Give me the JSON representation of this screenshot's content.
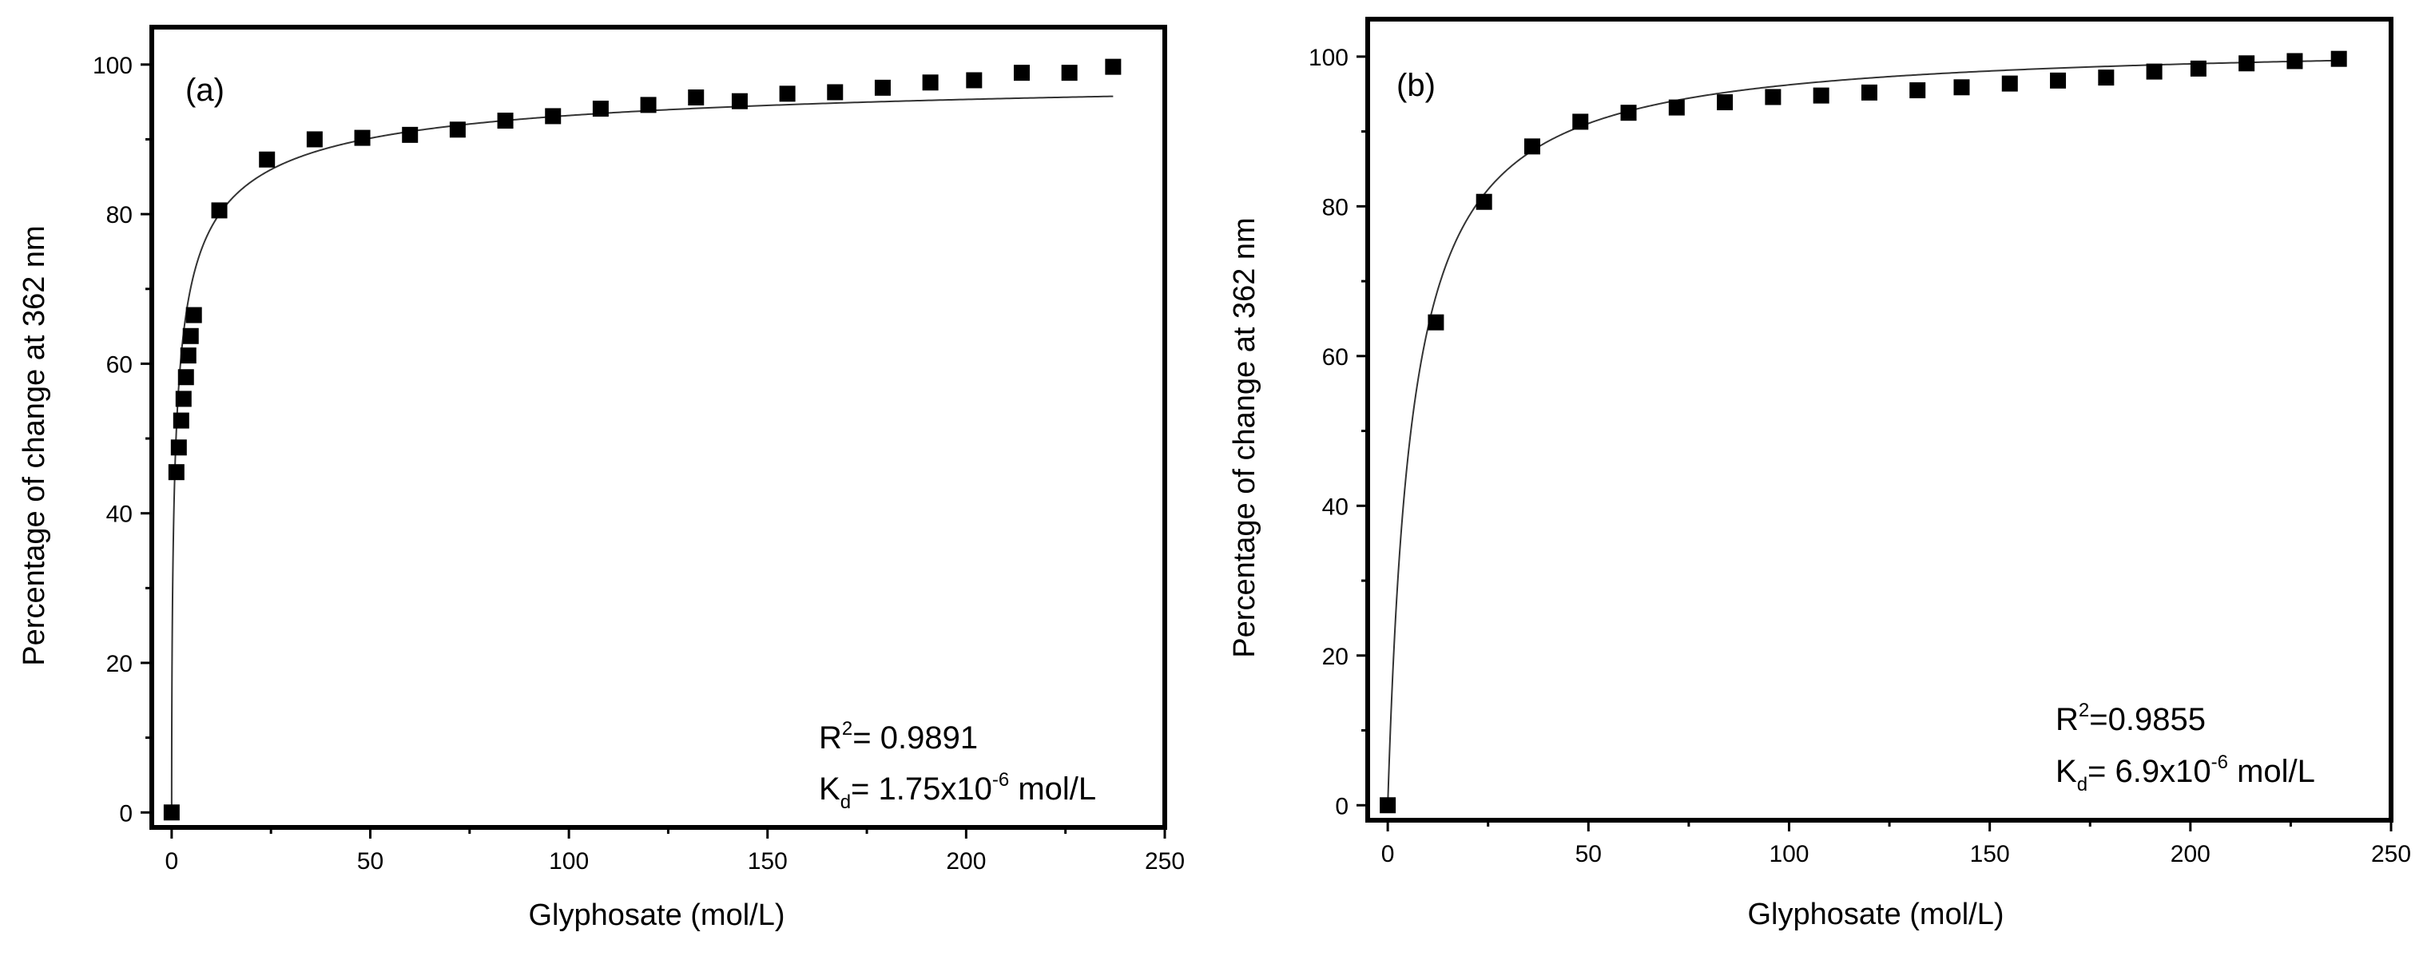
{
  "chart_data": [
    {
      "type": "scatter",
      "panel_label": "(a)",
      "xlabel": "Glyphosate (mol/L)",
      "ylabel": "Percentage of change at 362 nm",
      "xlim": [
        -5,
        250
      ],
      "ylim": [
        -2,
        105
      ],
      "xticks": [
        0,
        50,
        100,
        150,
        200,
        250
      ],
      "yticks": [
        0,
        20,
        40,
        60,
        80,
        100
      ],
      "xtick_labels": [
        "0",
        "50",
        "100",
        "150",
        "200",
        "250"
      ],
      "ytick_labels": [
        "0",
        "20",
        "40",
        "60",
        "80",
        "100"
      ],
      "series": [
        {
          "name": "data",
          "x": [
            0,
            1.2,
            1.8,
            2.4,
            3.0,
            3.6,
            4.2,
            4.8,
            5.6,
            12,
            24,
            36,
            48,
            60,
            72,
            84,
            96,
            108,
            120,
            132,
            143,
            155,
            167,
            179,
            191,
            202,
            214,
            226,
            237
          ],
          "y": [
            0,
            45.5,
            48.8,
            52.4,
            55.3,
            58.2,
            61.1,
            63.7,
            66.5,
            80.5,
            87.3,
            90.0,
            90.2,
            90.6,
            91.3,
            92.5,
            93.1,
            94.1,
            94.6,
            95.6,
            95.1,
            96.1,
            96.3,
            96.9,
            97.6,
            97.9,
            98.9,
            98.9,
            99.7
          ]
        }
      ],
      "fit": {
        "model": "hill",
        "vmax": 100,
        "k": 1.1,
        "n": 0.58,
        "x_end": 237
      },
      "annotation": {
        "r2_prefix": "R",
        "r2_sup": "2",
        "r2_value": "= 0.9891",
        "kd_prefix": "K",
        "kd_sub": "d",
        "kd_value": "= 1.75x10",
        "kd_exp": "-6",
        "kd_unit": " mol/L"
      }
    },
    {
      "type": "scatter",
      "panel_label": "(b)",
      "xlabel": "Glyphosate (mol/L)",
      "ylabel": "Percentage of change at 362 nm",
      "xlim": [
        -5,
        250
      ],
      "ylim": [
        -2,
        105
      ],
      "xticks": [
        0,
        50,
        100,
        150,
        200,
        250
      ],
      "yticks": [
        0,
        20,
        40,
        60,
        80,
        100
      ],
      "xtick_labels": [
        "0",
        "50",
        "100",
        "150",
        "200",
        "250"
      ],
      "ytick_labels": [
        "0",
        "20",
        "40",
        "60",
        "80",
        "100"
      ],
      "series": [
        {
          "name": "data",
          "x": [
            0,
            12,
            24,
            36,
            48,
            60,
            72,
            84,
            96,
            108,
            120,
            132,
            143,
            155,
            167,
            179,
            191,
            202,
            214,
            226,
            237
          ],
          "y": [
            0,
            64.5,
            80.6,
            88.0,
            91.3,
            92.5,
            93.2,
            93.9,
            94.6,
            94.8,
            95.2,
            95.5,
            95.9,
            96.4,
            96.8,
            97.2,
            98.0,
            98.4,
            99.1,
            99.4,
            99.7
          ]
        }
      ],
      "fit": {
        "model": "hyperbolic",
        "vmax": 102,
        "k": 6.0,
        "x_end": 237
      },
      "annotation": {
        "r2_prefix": "R",
        "r2_sup": "2",
        "r2_value": "=0.9855",
        "kd_prefix": "K",
        "kd_sub": "d",
        "kd_value": "= 6.9x10",
        "kd_exp": "-6",
        "kd_unit": " mol/L"
      }
    }
  ]
}
